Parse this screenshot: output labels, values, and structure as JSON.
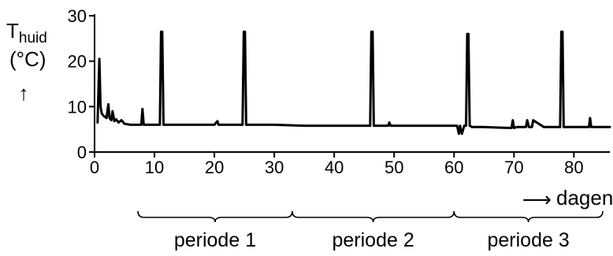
{
  "chart_data": {
    "type": "line",
    "title": "",
    "ylabel_main": "T",
    "ylabel_sub": "huid",
    "ylabel_unit": "(°C)",
    "ylabel_arrow": "↑",
    "xlabel_arrow": "⟶",
    "xlabel": "dagen",
    "xlim": [
      0,
      86
    ],
    "ylim": [
      0,
      30
    ],
    "xticks": [
      0,
      10,
      20,
      30,
      40,
      50,
      60,
      70,
      80
    ],
    "yticks": [
      0,
      10,
      20,
      30
    ],
    "grid": false,
    "series": [
      {
        "x": [
          0.5,
          0.8,
          1.0,
          1.2,
          1.5,
          2.0,
          2.3,
          2.5,
          2.8,
          3.0,
          3.3,
          3.6,
          4.0,
          4.5,
          5.0,
          6.0,
          7.0,
          7.8,
          8.0,
          8.2,
          8.5,
          10.0,
          10.9,
          11.1,
          11.3,
          11.5,
          12.0,
          15.0,
          20.0,
          20.5,
          20.7,
          21.0,
          24.0,
          24.7,
          24.9,
          25.1,
          25.3,
          30.0,
          35.0,
          40.0,
          45.0,
          46.0,
          46.2,
          46.4,
          46.6,
          48.0,
          49.0,
          49.2,
          49.4,
          55.0,
          59.0,
          60.5,
          60.8,
          61.0,
          61.3,
          61.7,
          62.0,
          62.2,
          62.4,
          62.6,
          63.0,
          64.0,
          65.0,
          69.0,
          69.6,
          69.8,
          70.0,
          70.5,
          72.0,
          72.2,
          72.5,
          73.0,
          73.2,
          75.0,
          77.0,
          77.7,
          77.9,
          78.1,
          78.3,
          80.0,
          82.5,
          82.7,
          82.9,
          84.0,
          86.0
        ],
        "y": [
          6.5,
          20.5,
          10.0,
          8.5,
          8.0,
          7.5,
          10.5,
          7.5,
          7.0,
          9.0,
          6.8,
          7.2,
          6.5,
          7.0,
          6.2,
          6.0,
          6.0,
          6.0,
          9.5,
          6.0,
          6.0,
          6.0,
          6.0,
          26.5,
          26.5,
          6.0,
          6.0,
          6.0,
          6.0,
          6.8,
          6.0,
          6.0,
          6.0,
          6.0,
          26.5,
          26.5,
          6.0,
          6.0,
          5.8,
          5.8,
          5.8,
          5.8,
          26.5,
          26.5,
          5.8,
          5.8,
          5.8,
          6.5,
          5.8,
          5.8,
          5.8,
          5.8,
          4.0,
          5.8,
          4.0,
          5.8,
          5.8,
          26.0,
          26.0,
          5.8,
          5.5,
          5.5,
          5.5,
          5.3,
          5.3,
          7.0,
          5.3,
          5.5,
          5.5,
          7.0,
          5.5,
          5.5,
          7.0,
          5.5,
          5.5,
          5.5,
          26.5,
          26.5,
          5.5,
          5.5,
          5.5,
          7.5,
          5.5,
          5.5,
          5.5
        ]
      }
    ],
    "periods": [
      {
        "label": "periode 1",
        "start": 0,
        "end": 33
      },
      {
        "label": "periode 2",
        "start": 33,
        "end": 60
      },
      {
        "label": "periode 3",
        "start": 60,
        "end": 86
      }
    ]
  }
}
